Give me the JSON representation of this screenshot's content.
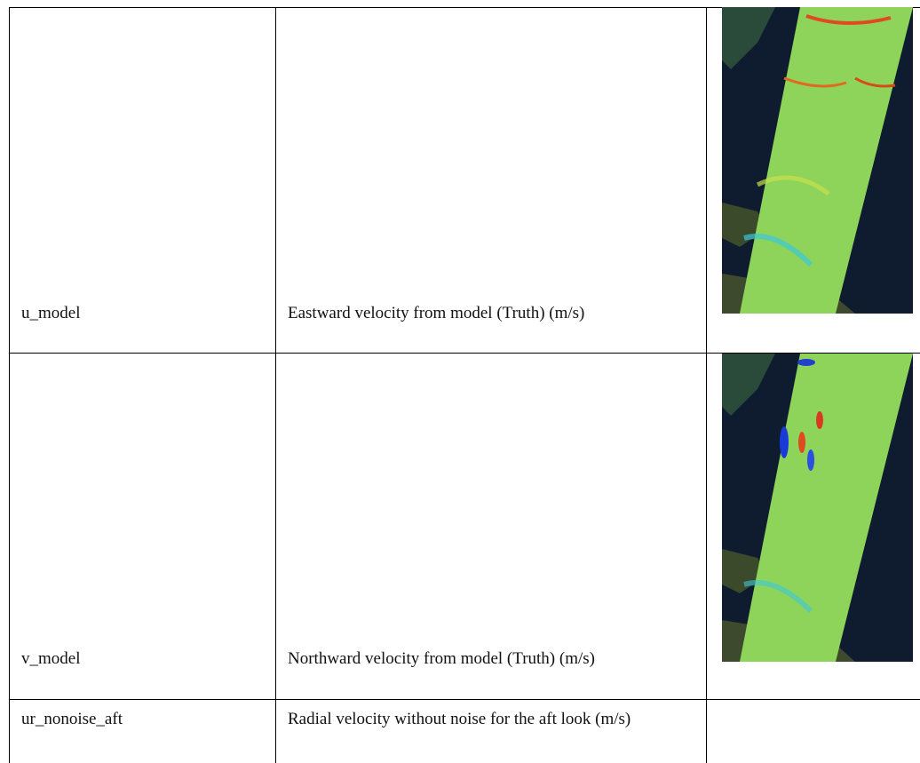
{
  "table": {
    "rows": [
      [
        "u_model",
        "Eastward velocity from model (Truth) (m/s)"
      ],
      [
        "v_model",
        "Northward velocity from model (Truth) (m/s)"
      ],
      [
        "ur_nonoise_aft",
        "Radial velocity without noise for the aft look (m/s)"
      ]
    ]
  }
}
